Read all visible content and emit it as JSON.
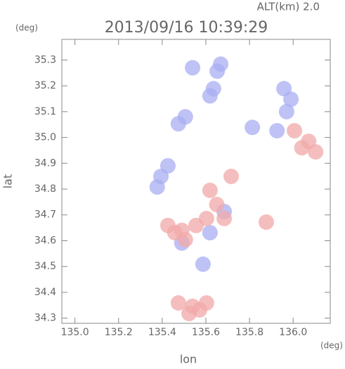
{
  "chart_data": {
    "type": "scatter",
    "title": "2013/09/16 10:39:29",
    "subtitle": "ALT(km) 2.0",
    "y_unit": "(deg)",
    "x_unit": "(deg)",
    "x_label": "lon",
    "y_label": "lat",
    "xlim": [
      134.94,
      136.17
    ],
    "ylim": [
      34.28,
      35.38
    ],
    "xticks": [
      {
        "value": 135.0,
        "label": "135.0"
      },
      135.2,
      135.4,
      135.6,
      135.8,
      {
        "value": 136.0,
        "label": "136.0"
      }
    ],
    "yticks": [
      34.3,
      34.4,
      34.5,
      34.6,
      34.7,
      34.8,
      34.9,
      {
        "value": 35.0,
        "label": "35.0"
      },
      35.1,
      35.2,
      35.3
    ],
    "series": [
      {
        "color": "#a8aef2",
        "x": [
          135.652,
          135.635,
          135.668,
          135.619,
          135.539,
          135.506,
          135.474,
          135.426,
          135.394,
          135.377,
          135.958,
          135.99,
          135.926,
          135.813,
          135.619,
          135.587,
          135.49,
          135.684,
          135.97
        ],
        "y": [
          35.257,
          35.189,
          35.284,
          35.161,
          35.27,
          35.08,
          35.053,
          34.89,
          34.849,
          34.808,
          35.189,
          35.148,
          35.026,
          35.039,
          34.631,
          34.509,
          34.591,
          34.713,
          35.1
        ]
      },
      {
        "color": "#f2a8a8",
        "x": [
          135.539,
          135.474,
          135.603,
          135.523,
          135.571,
          135.458,
          135.426,
          135.506,
          135.619,
          135.603,
          135.684,
          136.071,
          136.103,
          136.006,
          135.877,
          135.716,
          135.555,
          135.49,
          136.04,
          135.65
        ],
        "y": [
          34.346,
          34.359,
          34.359,
          34.318,
          34.332,
          34.631,
          34.659,
          34.604,
          34.795,
          34.686,
          34.686,
          34.985,
          34.944,
          35.026,
          34.672,
          34.849,
          34.659,
          34.64,
          34.96,
          34.74
        ]
      }
    ]
  }
}
